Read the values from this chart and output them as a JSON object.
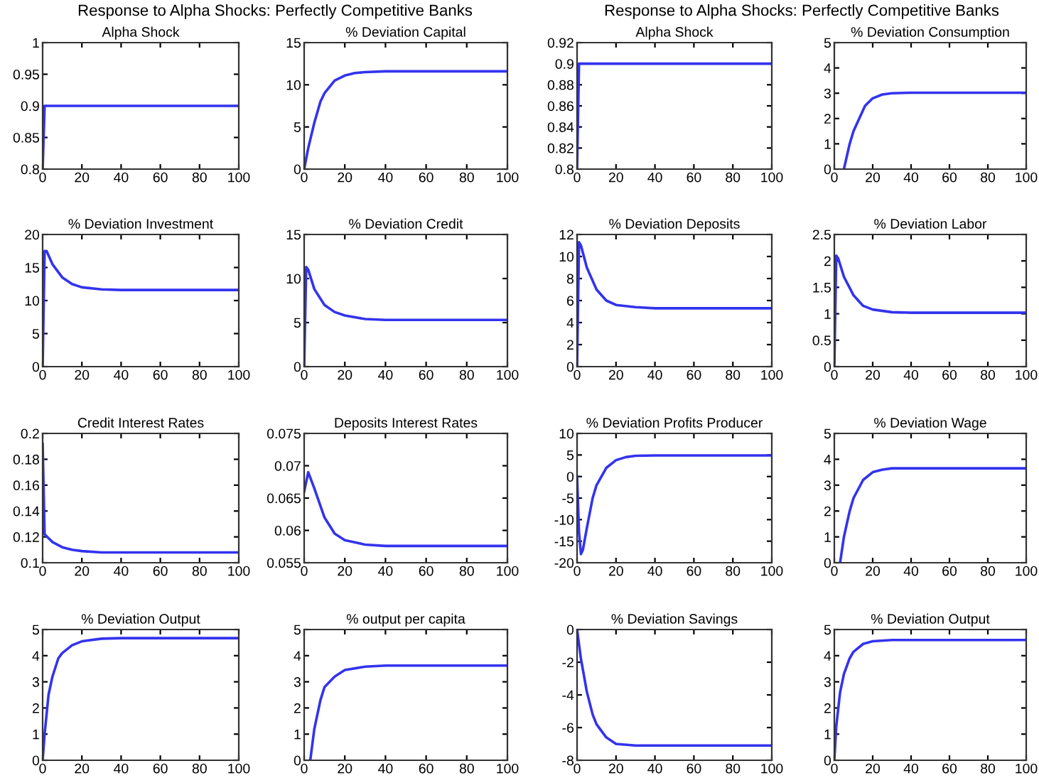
{
  "chart_data": [
    {
      "type": "line",
      "title": "Alpha Shock",
      "annotations": [
        "Response to Alpha Shocks: Perfectly Competitive Banks"
      ],
      "x": [
        0,
        1,
        100
      ],
      "values": [
        0.8,
        0.9,
        0.9
      ],
      "color": "#3333ee",
      "xlim": [
        0,
        100
      ],
      "xticks": [
        0,
        20,
        40,
        60,
        80,
        100
      ],
      "ylim": [
        0.8,
        1
      ],
      "yticks": [
        0.8,
        0.85,
        0.9,
        0.95,
        1
      ],
      "grid": false
    },
    {
      "type": "line",
      "title": "% Deviation Capital",
      "x": [
        0,
        2,
        5,
        8,
        10,
        15,
        20,
        25,
        30,
        40,
        60,
        100
      ],
      "values": [
        0,
        2.5,
        5.5,
        8,
        9,
        10.5,
        11.1,
        11.4,
        11.5,
        11.6,
        11.6,
        11.6
      ],
      "color": "#3333ee",
      "xlim": [
        0,
        100
      ],
      "xticks": [
        0,
        20,
        40,
        60,
        80,
        100
      ],
      "ylim": [
        0,
        15
      ],
      "yticks": [
        0,
        5,
        10,
        15
      ],
      "grid": false
    },
    {
      "type": "line",
      "title": "Alpha Shock",
      "annotations": [
        "Response to Alpha Shocks: Perfectly Competitive Banks"
      ],
      "x": [
        0,
        1,
        100
      ],
      "values": [
        0.8,
        0.9,
        0.9
      ],
      "color": "#3333ee",
      "xlim": [
        0,
        100
      ],
      "xticks": [
        0,
        20,
        40,
        60,
        80,
        100
      ],
      "ylim": [
        0.8,
        0.92
      ],
      "yticks": [
        0.8,
        0.82,
        0.84,
        0.86,
        0.88,
        0.9,
        0.92
      ],
      "grid": false
    },
    {
      "type": "line",
      "title": "% Deviation Consumption",
      "x": [
        5,
        8,
        10,
        13,
        16,
        20,
        25,
        30,
        40,
        100
      ],
      "values": [
        0,
        1,
        1.5,
        2,
        2.5,
        2.8,
        2.95,
        3,
        3.02,
        3.02
      ],
      "color": "#3333ee",
      "xlim": [
        0,
        100
      ],
      "xticks": [
        0,
        20,
        40,
        60,
        80,
        100
      ],
      "ylim": [
        0,
        5
      ],
      "yticks": [
        0,
        1,
        2,
        3,
        4,
        5
      ],
      "grid": false
    },
    {
      "type": "line",
      "title": "% Deviation Investment",
      "x": [
        0,
        1,
        2,
        5,
        10,
        15,
        20,
        30,
        40,
        100
      ],
      "values": [
        0,
        17.5,
        17.5,
        15.5,
        13.5,
        12.5,
        12,
        11.7,
        11.6,
        11.6
      ],
      "color": "#3333ee",
      "xlim": [
        0,
        100
      ],
      "xticks": [
        0,
        20,
        40,
        60,
        80,
        100
      ],
      "ylim": [
        0,
        20
      ],
      "yticks": [
        0,
        5,
        10,
        15,
        20
      ],
      "grid": false
    },
    {
      "type": "line",
      "title": "% Deviation Credit",
      "x": [
        0,
        1,
        2,
        5,
        10,
        15,
        20,
        30,
        40,
        100
      ],
      "values": [
        0,
        11.3,
        11,
        8.8,
        7,
        6.2,
        5.8,
        5.4,
        5.3,
        5.3
      ],
      "color": "#3333ee",
      "xlim": [
        0,
        100
      ],
      "xticks": [
        0,
        20,
        40,
        60,
        80,
        100
      ],
      "ylim": [
        0,
        15
      ],
      "yticks": [
        0,
        5,
        10,
        15
      ],
      "grid": false
    },
    {
      "type": "line",
      "title": "% Deviation Deposits",
      "x": [
        0,
        1,
        2,
        5,
        10,
        15,
        20,
        30,
        40,
        100
      ],
      "values": [
        0,
        11.3,
        11,
        9,
        7,
        6,
        5.6,
        5.4,
        5.3,
        5.3
      ],
      "color": "#3333ee",
      "xlim": [
        0,
        100
      ],
      "xticks": [
        0,
        20,
        40,
        60,
        80,
        100
      ],
      "ylim": [
        0,
        12
      ],
      "yticks": [
        0,
        2,
        4,
        6,
        8,
        10,
        12
      ],
      "grid": false
    },
    {
      "type": "line",
      "title": "% Deviation Labor",
      "x": [
        0,
        1,
        2,
        5,
        10,
        15,
        20,
        30,
        40,
        100
      ],
      "values": [
        0,
        2.1,
        2.05,
        1.7,
        1.35,
        1.15,
        1.08,
        1.03,
        1.02,
        1.02
      ],
      "color": "#3333ee",
      "xlim": [
        0,
        100
      ],
      "xticks": [
        0,
        20,
        40,
        60,
        80,
        100
      ],
      "ylim": [
        0,
        2.5
      ],
      "yticks": [
        0,
        0.5,
        1,
        1.5,
        2,
        2.5
      ],
      "grid": false
    },
    {
      "type": "line",
      "title": "Credit Interest Rates",
      "x": [
        0,
        1,
        5,
        10,
        15,
        20,
        30,
        100
      ],
      "values": [
        0.192,
        0.122,
        0.116,
        0.112,
        0.11,
        0.109,
        0.108,
        0.108
      ],
      "color": "#3333ee",
      "xlim": [
        0,
        100
      ],
      "xticks": [
        0,
        20,
        40,
        60,
        80,
        100
      ],
      "ylim": [
        0.1,
        0.2
      ],
      "yticks": [
        0.1,
        0.12,
        0.14,
        0.16,
        0.18,
        0.2
      ],
      "grid": false
    },
    {
      "type": "line",
      "title": "Deposits Interest Rates",
      "x": [
        0,
        2,
        5,
        10,
        15,
        20,
        30,
        40,
        100
      ],
      "values": [
        0.066,
        0.069,
        0.0665,
        0.062,
        0.0595,
        0.0585,
        0.0578,
        0.0576,
        0.0576
      ],
      "color": "#3333ee",
      "xlim": [
        0,
        100
      ],
      "xticks": [
        0,
        20,
        40,
        60,
        80,
        100
      ],
      "ylim": [
        0.055,
        0.075
      ],
      "yticks": [
        0.055,
        0.06,
        0.065,
        0.07,
        0.075
      ],
      "grid": false
    },
    {
      "type": "line",
      "title": "% Deviation Profits Producer",
      "x": [
        0,
        1,
        2,
        3,
        5,
        8,
        10,
        15,
        20,
        25,
        30,
        40,
        100
      ],
      "values": [
        0,
        -13,
        -18,
        -17,
        -12,
        -5,
        -2,
        2,
        3.8,
        4.5,
        4.8,
        4.9,
        4.9
      ],
      "color": "#3333ee",
      "xlim": [
        0,
        100
      ],
      "xticks": [
        0,
        20,
        40,
        60,
        80,
        100
      ],
      "ylim": [
        -20,
        10
      ],
      "yticks": [
        -20,
        -15,
        -10,
        -5,
        0,
        5,
        10
      ],
      "grid": false
    },
    {
      "type": "line",
      "title": "% Deviation Wage",
      "x": [
        3,
        5,
        8,
        10,
        15,
        20,
        25,
        30,
        100
      ],
      "values": [
        0,
        1,
        2,
        2.5,
        3.2,
        3.5,
        3.6,
        3.65,
        3.65
      ],
      "color": "#3333ee",
      "xlim": [
        0,
        100
      ],
      "xticks": [
        0,
        20,
        40,
        60,
        80,
        100
      ],
      "ylim": [
        0,
        5
      ],
      "yticks": [
        0,
        1,
        2,
        3,
        4,
        5
      ],
      "grid": false
    },
    {
      "type": "line",
      "title": "% Deviation Output",
      "x": [
        0,
        1,
        3,
        5,
        8,
        10,
        15,
        20,
        30,
        40,
        100
      ],
      "values": [
        0,
        1,
        2.5,
        3.2,
        3.9,
        4.1,
        4.4,
        4.55,
        4.65,
        4.67,
        4.67
      ],
      "color": "#3333ee",
      "xlim": [
        0,
        100
      ],
      "xticks": [
        0,
        20,
        40,
        60,
        80,
        100
      ],
      "ylim": [
        0,
        5
      ],
      "yticks": [
        0,
        1,
        2,
        3,
        4,
        5
      ],
      "grid": false
    },
    {
      "type": "line",
      "title": "% output per capita",
      "x": [
        3,
        5,
        8,
        10,
        15,
        20,
        30,
        40,
        100
      ],
      "values": [
        0,
        1.2,
        2.3,
        2.8,
        3.2,
        3.45,
        3.58,
        3.62,
        3.62
      ],
      "color": "#3333ee",
      "xlim": [
        0,
        100
      ],
      "xticks": [
        0,
        20,
        40,
        60,
        80,
        100
      ],
      "ylim": [
        0,
        5
      ],
      "yticks": [
        0,
        1,
        2,
        3,
        4,
        5
      ],
      "grid": false
    },
    {
      "type": "line",
      "title": "% Deviation Savings",
      "x": [
        0,
        2,
        5,
        8,
        10,
        15,
        20,
        30,
        40,
        100
      ],
      "values": [
        0,
        -1.8,
        -3.8,
        -5.2,
        -5.8,
        -6.6,
        -7,
        -7.1,
        -7.1,
        -7.1
      ],
      "color": "#3333ee",
      "xlim": [
        0,
        100
      ],
      "xticks": [
        0,
        20,
        40,
        60,
        80,
        100
      ],
      "ylim": [
        -8,
        0
      ],
      "yticks": [
        -8,
        -6,
        -4,
        -2,
        0
      ],
      "grid": false
    },
    {
      "type": "line",
      "title": "% Deviation Output",
      "x": [
        0,
        1,
        3,
        5,
        8,
        10,
        15,
        20,
        30,
        100
      ],
      "values": [
        0,
        1.3,
        2.6,
        3.3,
        3.9,
        4.15,
        4.45,
        4.55,
        4.6,
        4.6
      ],
      "color": "#3333ee",
      "xlim": [
        0,
        100
      ],
      "xticks": [
        0,
        20,
        40,
        60,
        80,
        100
      ],
      "ylim": [
        0,
        5
      ],
      "yticks": [
        0,
        1,
        2,
        3,
        4,
        5
      ],
      "grid": false
    }
  ]
}
